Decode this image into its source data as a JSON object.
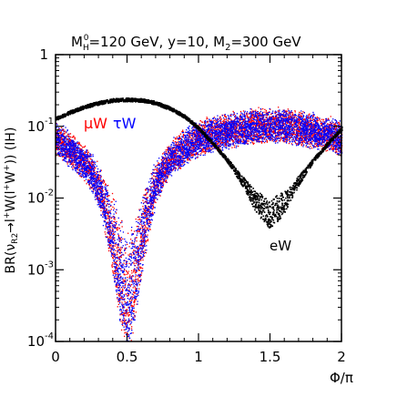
{
  "chart_data": {
    "type": "scatter",
    "title_parts": {
      "m": "M",
      "h_sub": "H",
      "h_sup": "0",
      "rest1": "=120 GeV, y=10, M",
      "two": "2",
      "rest2": "=300 GeV"
    },
    "ylabel_parts": {
      "a": "BR(ν",
      "a_sub": "R2",
      "b": "→l",
      "b_sup": "+",
      "c": "W(l",
      "c_sup": "+",
      "d": "W",
      "d_sup": "+",
      "e": ")) (IH)"
    },
    "xlabel": "Φ/π",
    "x_range": [
      0,
      2
    ],
    "y_range": [
      0.0001,
      1
    ],
    "y_scale": "log",
    "x_ticks": [
      "0",
      "0.5",
      "1",
      "1.5",
      "2"
    ],
    "y_ticks": [
      {
        "base": "1",
        "exp": ""
      },
      {
        "base": "10",
        "exp": "-1"
      },
      {
        "base": "10",
        "exp": "-2"
      },
      {
        "base": "10",
        "exp": "-3"
      },
      {
        "base": "10",
        "exp": "-4"
      }
    ],
    "series": [
      {
        "name": "eW",
        "color": "#000000",
        "x": [
          0,
          0.1,
          0.2,
          0.3,
          0.4,
          0.5,
          0.6,
          0.7,
          0.8,
          0.9,
          1.0,
          1.1,
          1.2,
          1.3,
          1.4,
          1.5,
          1.6,
          1.7,
          1.8,
          1.9,
          2.0
        ],
        "y": [
          0.13,
          0.16,
          0.19,
          0.215,
          0.235,
          0.24,
          0.235,
          0.215,
          0.18,
          0.14,
          0.095,
          0.058,
          0.034,
          0.018,
          0.009,
          0.006,
          0.009,
          0.018,
          0.034,
          0.058,
          0.095
        ]
      },
      {
        "name": "μW",
        "color": "#ff0000",
        "x": [
          0,
          0.1,
          0.2,
          0.3,
          0.4,
          0.45,
          0.5,
          0.55,
          0.6,
          0.7,
          0.8,
          0.9,
          1.0,
          1.1,
          1.2,
          1.3,
          1.4,
          1.5,
          1.6,
          1.7,
          1.8,
          1.9,
          2.0
        ],
        "y": [
          0.085,
          0.06,
          0.04,
          0.022,
          0.009,
          0.004,
          0.0025,
          0.004,
          0.009,
          0.025,
          0.045,
          0.065,
          0.085,
          0.1,
          0.11,
          0.12,
          0.13,
          0.13,
          0.13,
          0.12,
          0.11,
          0.1,
          0.085
        ]
      },
      {
        "name": "τW",
        "color": "#0000ff",
        "x": [
          0,
          0.1,
          0.2,
          0.3,
          0.4,
          0.45,
          0.5,
          0.55,
          0.6,
          0.7,
          0.8,
          0.9,
          1.0,
          1.1,
          1.2,
          1.3,
          1.4,
          1.5,
          1.6,
          1.7,
          1.8,
          1.9,
          2.0
        ],
        "y": [
          0.085,
          0.06,
          0.04,
          0.022,
          0.009,
          0.004,
          0.0025,
          0.004,
          0.009,
          0.025,
          0.045,
          0.065,
          0.085,
          0.1,
          0.11,
          0.12,
          0.13,
          0.13,
          0.13,
          0.12,
          0.11,
          0.1,
          0.085
        ]
      }
    ],
    "annotations": [
      {
        "text": "eW",
        "x": 1.55,
        "y": 0.0013,
        "color": "#000000"
      }
    ],
    "legend_placement": "top-left",
    "grid": false
  }
}
